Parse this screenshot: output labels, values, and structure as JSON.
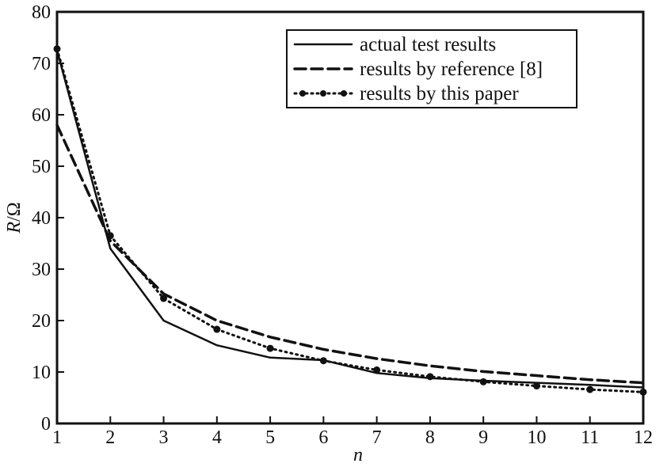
{
  "chart_data": {
    "type": "line",
    "title": "",
    "xlabel": "n",
    "ylabel": "R/Ω",
    "x": [
      1,
      2,
      3,
      4,
      5,
      6,
      7,
      8,
      9,
      10,
      11,
      12
    ],
    "xlim": [
      1,
      12
    ],
    "ylim": [
      0,
      80
    ],
    "xticks": [
      "1",
      "2",
      "3",
      "4",
      "5",
      "6",
      "7",
      "8",
      "9",
      "10",
      "11",
      "12"
    ],
    "yticks": [
      "0",
      "10",
      "20",
      "30",
      "40",
      "50",
      "60",
      "70",
      "80"
    ],
    "grid": false,
    "legend_position": "top-right",
    "series": [
      {
        "name": "actual test results",
        "style": "solid",
        "markers": false,
        "values": [
          72.5,
          34,
          20,
          15.2,
          12.8,
          12.3,
          9.8,
          8.8,
          8.3,
          7.9,
          7.5,
          7.0
        ]
      },
      {
        "name": "results by reference [8]",
        "style": "dashed",
        "markers": false,
        "values": [
          58,
          35.5,
          25.2,
          20,
          16.8,
          14.4,
          12.6,
          11.2,
          10.1,
          9.3,
          8.5,
          7.9
        ]
      },
      {
        "name": "results by this paper",
        "style": "dotted",
        "markers": true,
        "values": [
          72.8,
          36.5,
          24.3,
          18.3,
          14.6,
          12.2,
          10.4,
          9.1,
          8.1,
          7.3,
          6.6,
          6.1
        ]
      }
    ],
    "color": "#111111"
  }
}
